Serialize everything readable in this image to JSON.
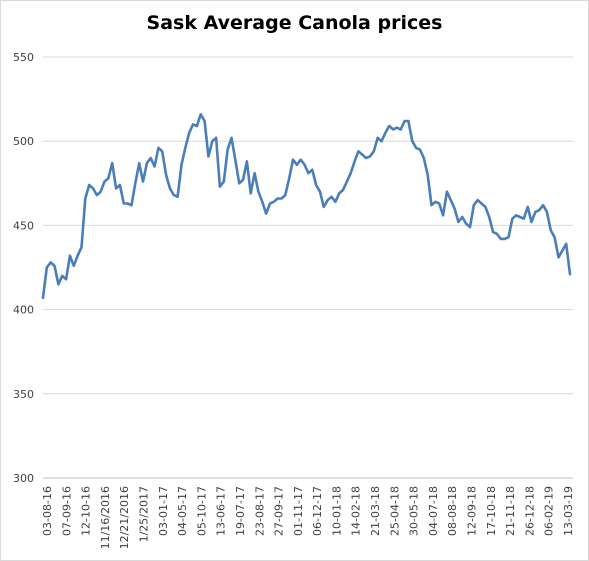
{
  "chart_data": {
    "type": "line",
    "title": "Sask Average Canola prices",
    "xlabel": "",
    "ylabel": "",
    "ylim": [
      300,
      550
    ],
    "y_ticks": [
      300,
      350,
      400,
      450,
      500,
      550
    ],
    "grid": "horizontal",
    "legend": "none",
    "line_color": "#4a7ebb",
    "x_tick_labels": [
      "03-08-16",
      "07-09-16",
      "12-10-16",
      "11/16/2016",
      "12/21/2016",
      "1/25/2017",
      "03-01-17",
      "04-05-17",
      "05-10-17",
      "13-06-17",
      "19-07-17",
      "23-08-17",
      "27-09-17",
      "01-11-17",
      "06-12-17",
      "10-01-18",
      "14-02-18",
      "21-03-18",
      "25-04-18",
      "30-05-18",
      "04-07-18",
      "08-08-18",
      "12-09-18",
      "17-10-18",
      "21-11-18",
      "26-12-18",
      "06-02-19",
      "13-03-19"
    ],
    "series": [
      {
        "values": [
          407,
          425,
          428,
          426,
          415,
          420,
          418,
          432,
          426,
          432,
          437,
          466,
          474,
          472,
          468,
          470,
          476,
          478,
          487,
          472,
          474,
          463,
          463,
          462,
          475,
          487,
          476,
          487,
          490,
          485,
          496,
          494,
          480,
          472,
          468,
          467,
          486,
          496,
          505,
          510,
          509,
          516,
          512,
          491,
          500,
          502,
          473,
          476,
          495,
          502,
          489,
          475,
          477,
          488,
          469,
          481,
          470,
          464,
          457,
          463,
          464,
          466,
          466,
          468,
          478,
          489,
          486,
          489,
          486,
          481,
          483,
          474,
          470,
          461,
          465,
          467,
          464,
          469,
          471,
          476,
          481,
          488,
          494,
          492,
          490,
          491,
          494,
          502,
          500,
          505,
          509,
          507,
          508,
          507,
          512,
          512,
          500,
          496,
          495,
          490,
          480,
          462,
          464,
          463,
          456,
          470,
          465,
          460,
          452,
          455,
          451,
          449,
          462,
          465,
          463,
          461,
          455,
          446,
          445,
          442,
          442,
          443,
          454,
          456,
          455,
          454,
          461,
          452,
          458,
          459,
          462,
          458,
          447,
          443,
          431,
          435,
          439,
          421
        ]
      }
    ]
  }
}
